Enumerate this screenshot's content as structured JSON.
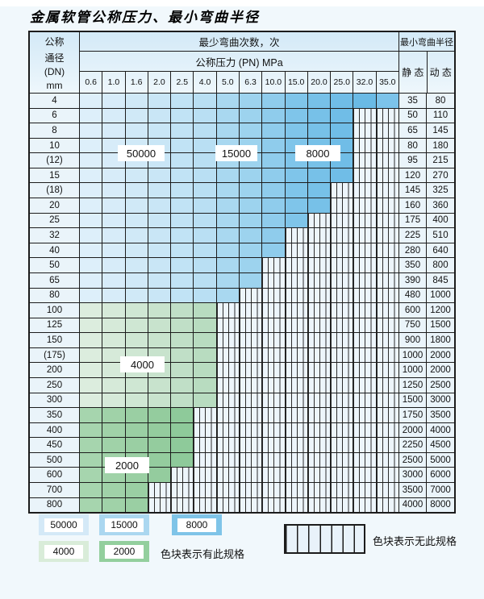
{
  "title": "金属软管公称压力、最小弯曲半径",
  "table": {
    "dn_header_lines": [
      "公称",
      "通径",
      "(DN)",
      "mm"
    ],
    "cycles_header": "最少弯曲次数，次",
    "pressure_header": "公称压力 (PN) MPa",
    "radius_header": "最小弯曲半径",
    "static_label": "静 态",
    "dynamic_label": "动 态",
    "pressure_columns": [
      "0.6",
      "1.0",
      "1.6",
      "2.0",
      "2.5",
      "4.0",
      "5.0",
      "6.3",
      "10.0",
      "15.0",
      "20.0",
      "25.0",
      "32.0",
      "35.0"
    ],
    "rows": [
      {
        "dn": "4",
        "static": "35",
        "dynamic": "80",
        "zone": "blue",
        "colored_through": 13
      },
      {
        "dn": "6",
        "static": "50",
        "dynamic": "110",
        "zone": "blue",
        "colored_through": 11
      },
      {
        "dn": "8",
        "static": "65",
        "dynamic": "145",
        "zone": "blue",
        "colored_through": 11
      },
      {
        "dn": "10",
        "static": "80",
        "dynamic": "180",
        "zone": "blue",
        "colored_through": 11
      },
      {
        "dn": "(12)",
        "static": "95",
        "dynamic": "215",
        "zone": "blue",
        "colored_through": 11
      },
      {
        "dn": "15",
        "static": "120",
        "dynamic": "270",
        "zone": "blue",
        "colored_through": 11
      },
      {
        "dn": "(18)",
        "static": "145",
        "dynamic": "325",
        "zone": "blue",
        "colored_through": 10
      },
      {
        "dn": "20",
        "static": "160",
        "dynamic": "360",
        "zone": "blue",
        "colored_through": 10
      },
      {
        "dn": "25",
        "static": "175",
        "dynamic": "400",
        "zone": "blue",
        "colored_through": 9
      },
      {
        "dn": "32",
        "static": "225",
        "dynamic": "510",
        "zone": "blue",
        "colored_through": 8
      },
      {
        "dn": "40",
        "static": "280",
        "dynamic": "640",
        "zone": "blue",
        "colored_through": 8
      },
      {
        "dn": "50",
        "static": "350",
        "dynamic": "800",
        "zone": "blue",
        "colored_through": 7
      },
      {
        "dn": "65",
        "static": "390",
        "dynamic": "845",
        "zone": "blue",
        "colored_through": 7
      },
      {
        "dn": "80",
        "static": "480",
        "dynamic": "1000",
        "zone": "blue",
        "colored_through": 6
      },
      {
        "dn": "100",
        "static": "600",
        "dynamic": "1200",
        "zone": "green_light",
        "colored_through": 5
      },
      {
        "dn": "125",
        "static": "750",
        "dynamic": "1500",
        "zone": "green_light",
        "colored_through": 5
      },
      {
        "dn": "150",
        "static": "900",
        "dynamic": "1800",
        "zone": "green_light",
        "colored_through": 5
      },
      {
        "dn": "(175)",
        "static": "1000",
        "dynamic": "2000",
        "zone": "green_light",
        "colored_through": 5
      },
      {
        "dn": "200",
        "static": "1000",
        "dynamic": "2000",
        "zone": "green_light",
        "colored_through": 5
      },
      {
        "dn": "250",
        "static": "1250",
        "dynamic": "2500",
        "zone": "green_light",
        "colored_through": 5
      },
      {
        "dn": "300",
        "static": "1500",
        "dynamic": "3000",
        "zone": "green_light",
        "colored_through": 5
      },
      {
        "dn": "350",
        "static": "1750",
        "dynamic": "3500",
        "zone": "green_dark",
        "colored_through": 4
      },
      {
        "dn": "400",
        "static": "2000",
        "dynamic": "4000",
        "zone": "green_dark",
        "colored_through": 4
      },
      {
        "dn": "450",
        "static": "2250",
        "dynamic": "4500",
        "zone": "green_dark",
        "colored_through": 4
      },
      {
        "dn": "500",
        "static": "2500",
        "dynamic": "5000",
        "zone": "green_dark",
        "colored_through": 4
      },
      {
        "dn": "600",
        "static": "3000",
        "dynamic": "6000",
        "zone": "green_dark",
        "colored_through": 3
      },
      {
        "dn": "700",
        "static": "3500",
        "dynamic": "7000",
        "zone": "green_dark",
        "colored_through": 2
      },
      {
        "dn": "800",
        "static": "4000",
        "dynamic": "8000",
        "zone": "green_dark",
        "colored_through": 2
      }
    ],
    "overlay_labels": [
      {
        "text": "50000"
      },
      {
        "text": "15000"
      },
      {
        "text": "8000"
      },
      {
        "text": "4000"
      },
      {
        "text": "2000"
      }
    ]
  },
  "palettes": {
    "blue": [
      "#ddeffa",
      "#d7ecf9",
      "#d0e9f7",
      "#c9e6f6",
      "#c1e3f5",
      "#b9dff3",
      "#a9d8f0",
      "#9dd3ee",
      "#8fccec",
      "#7fc5ea",
      "#77c1e8",
      "#70bde7",
      "#6abae5",
      "#7cc3ea"
    ],
    "green_light": [
      "#dcedde",
      "#d6ead9",
      "#cfe7d3",
      "#c8e3cd",
      "#c0dfc7",
      "#b8dcc0"
    ],
    "green_dark": [
      "#a6d5ae",
      "#a0d2a8",
      "#9acfa3",
      "#94cc9e",
      "#8eca9a"
    ],
    "hatch_bg": "#edf5fb",
    "label_cell_bg": "#eaf4fa",
    "grid_line": "#1c1c1c"
  },
  "legend": {
    "items": [
      {
        "text": "50000",
        "color": "#d4e9f7"
      },
      {
        "text": "15000",
        "color": "#abd7f0"
      },
      {
        "text": "8000",
        "color": "#7fc4e8"
      },
      {
        "text": "4000",
        "color": "#d9ecd9"
      },
      {
        "text": "2000",
        "color": "#93cf9d"
      }
    ],
    "has_spec_text": "色块表示有此规格",
    "no_spec_text": "色块表示无此规格"
  }
}
